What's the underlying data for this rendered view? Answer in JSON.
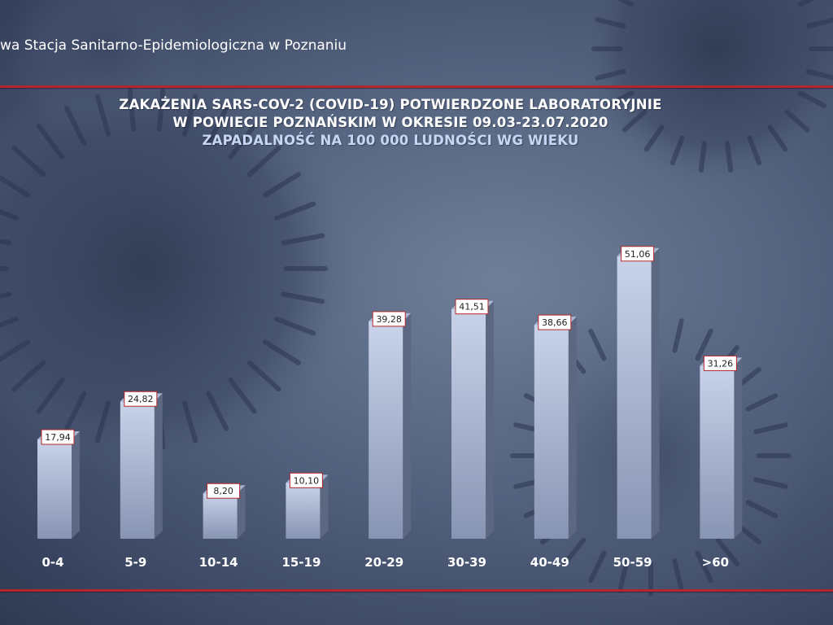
{
  "header": {
    "institution_text": "wa Stacja Sanitarno-Epidemiologiczna w Poznaniu"
  },
  "chart_data": {
    "type": "bar",
    "title_lines": [
      "ZAKAŻENIA SARS-COV-2 (COVID-19) POTWIERDZONE LABORATORYJNIE",
      "W POWIECIE POZNAŃSKIM W OKRESIE 09.03-23.07.2020",
      "ZAPADALNOŚĆ NA 100 000 LUDNOŚCI WG WIEKU"
    ],
    "categories": [
      "0-4",
      "5-9",
      "10-14",
      "15-19",
      "20-29",
      "30-39",
      "40-49",
      "50-59",
      ">60"
    ],
    "values": [
      17.94,
      24.82,
      8.2,
      10.1,
      39.28,
      41.51,
      38.66,
      51.06,
      31.26
    ],
    "value_labels": [
      "17,94",
      "24,82",
      "8,20",
      "10,10",
      "39,28",
      "41,51",
      "38,66",
      "51,06",
      "31,26"
    ],
    "ylim": [
      0,
      60
    ],
    "grid": false,
    "xlabel": "",
    "ylabel": "",
    "colors": {
      "bar_front_light": "#c9d3ea",
      "bar_front_dark": "#8794b3",
      "bar_side": "#5c6781",
      "bar_top": "#aab5cf",
      "label_border": "#b3272c",
      "label_bg": "#ffffff",
      "category_text": "#ffffff",
      "rule_line": "#b3272c"
    }
  }
}
